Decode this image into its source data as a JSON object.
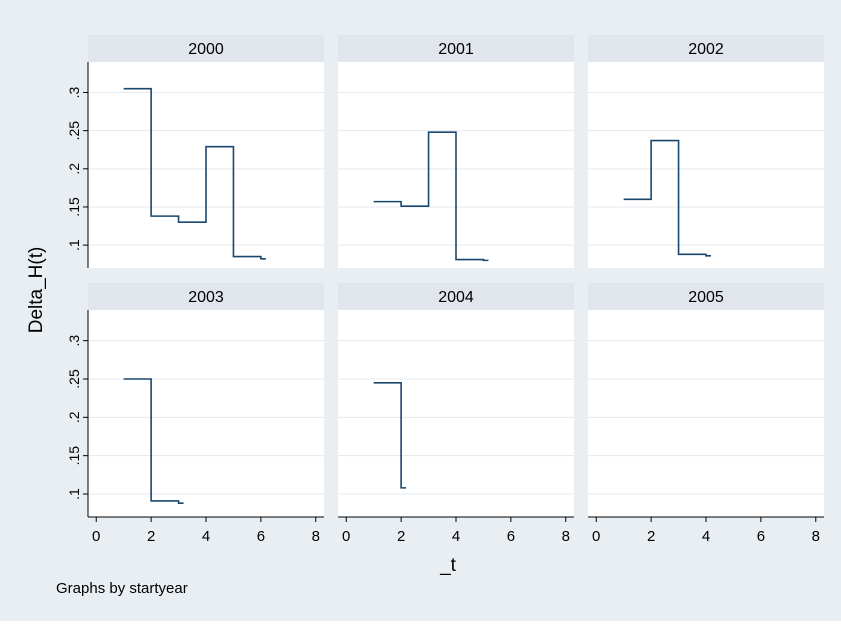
{
  "colors": {
    "outer_background": "#e9eef3",
    "plot_background": "#ffffff",
    "strip_background": "#e0e6ec",
    "line": "#1a476f",
    "grid": "#e5eaef",
    "axis": "#000000"
  },
  "chart_data": {
    "type": "line",
    "line_style": "step",
    "ylabel": "Delta_H(t)",
    "xlabel": "_t",
    "note": "Graphs by startyear",
    "x_range": [
      -0.3,
      8.3
    ],
    "y_range": [
      0.07,
      0.34
    ],
    "x_ticks": [
      0,
      2,
      4,
      6,
      8
    ],
    "x_tick_labels": [
      "0",
      "2",
      "4",
      "6",
      "8"
    ],
    "y_ticks": [
      0.1,
      0.15,
      0.2,
      0.25,
      0.3
    ],
    "y_tick_labels": [
      ".1",
      ".15",
      ".2",
      ".25",
      ".3"
    ],
    "grid": true,
    "panels": [
      {
        "title": "2000",
        "x": [
          1,
          2,
          3,
          4,
          5,
          6
        ],
        "y": [
          0.305,
          0.138,
          0.13,
          0.229,
          0.085,
          0.082
        ]
      },
      {
        "title": "2001",
        "x": [
          1,
          2,
          3,
          4,
          5
        ],
        "y": [
          0.157,
          0.151,
          0.248,
          0.081,
          0.08
        ]
      },
      {
        "title": "2002",
        "x": [
          1,
          2,
          3,
          4
        ],
        "y": [
          0.16,
          0.237,
          0.088,
          0.086
        ]
      },
      {
        "title": "2003",
        "x": [
          1,
          2,
          3
        ],
        "y": [
          0.25,
          0.091,
          0.088
        ]
      },
      {
        "title": "2004",
        "x": [
          1,
          2
        ],
        "y": [
          0.245,
          0.108
        ]
      },
      {
        "title": "2005",
        "x": [],
        "y": []
      }
    ]
  }
}
